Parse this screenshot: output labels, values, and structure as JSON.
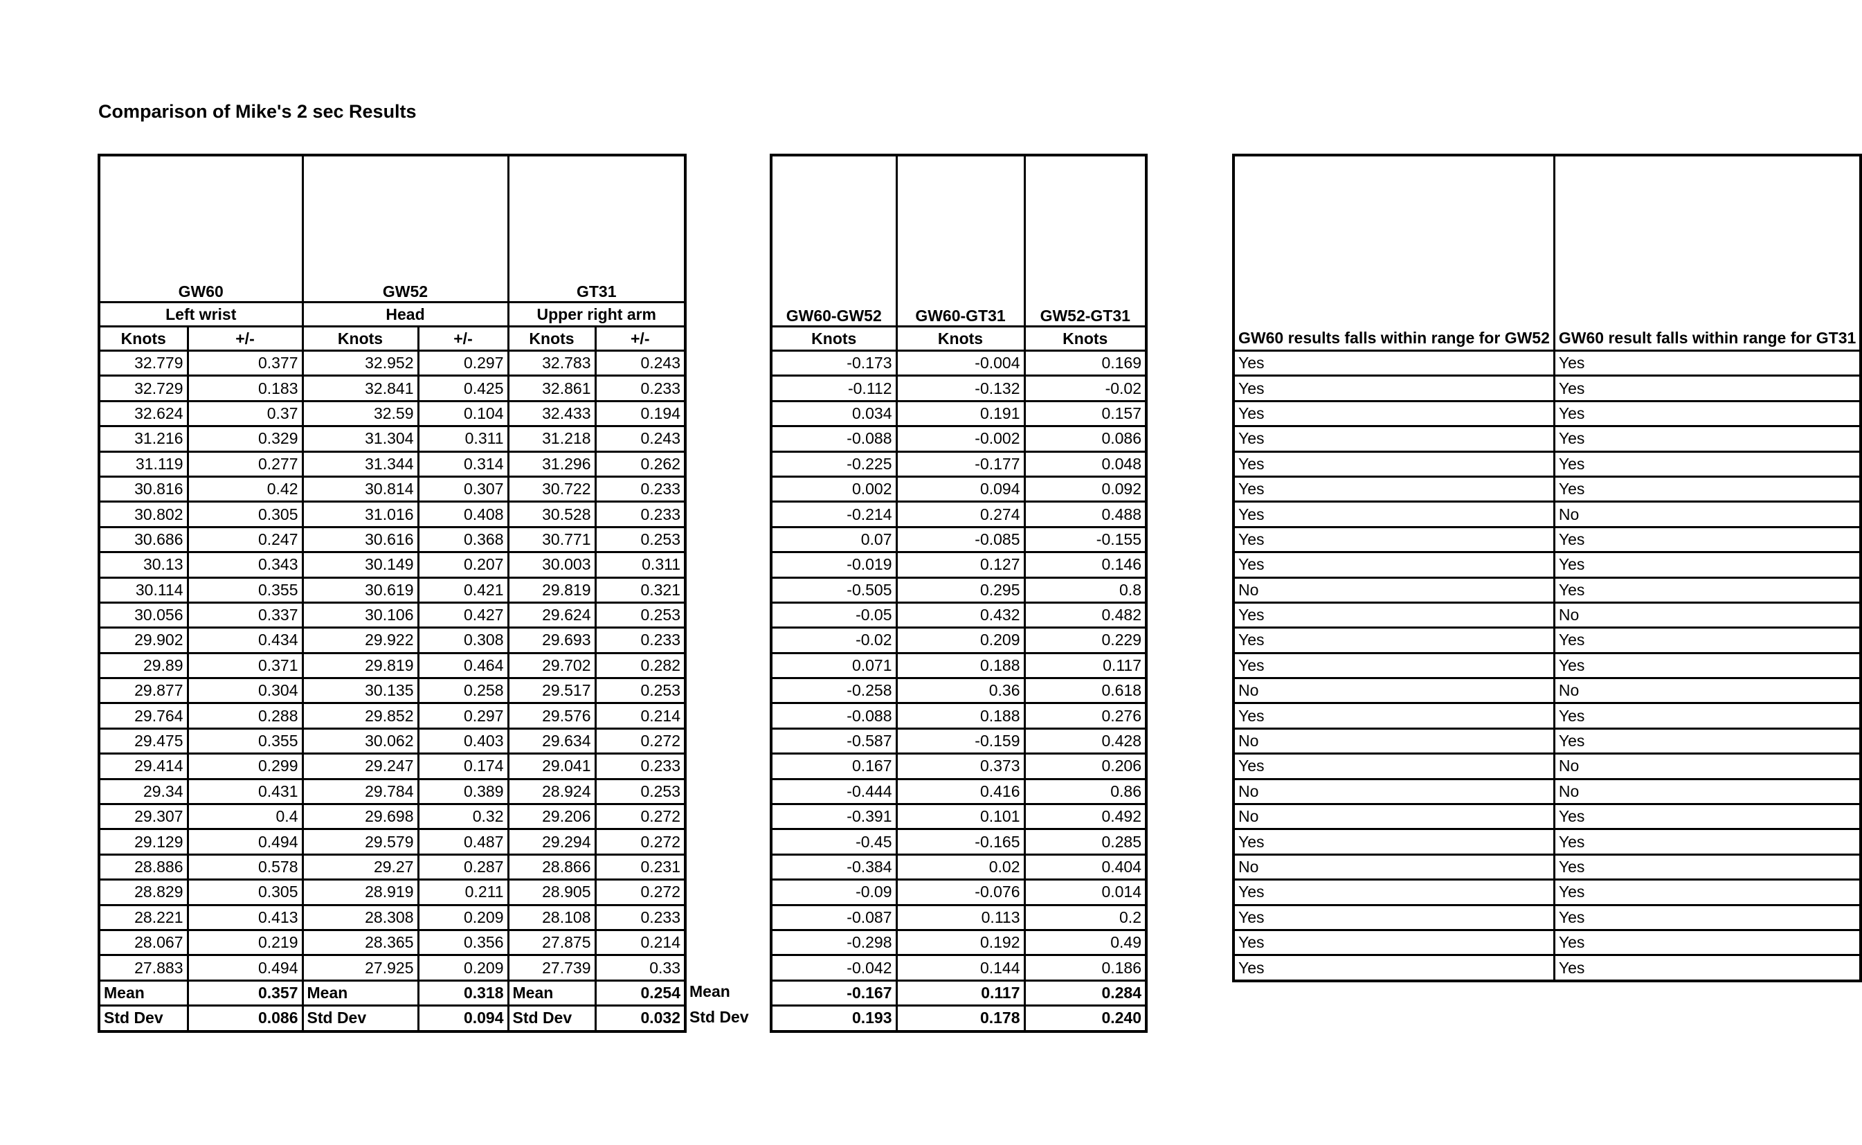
{
  "title": "Comparison of Mike's 2 sec Results",
  "outer_labels": {
    "mean": "Mean",
    "std": "Std Dev"
  },
  "measurements_table": {
    "groups": [
      {
        "device": "GW60",
        "location": "Left wrist"
      },
      {
        "device": "GW52",
        "location": "Head"
      },
      {
        "device": "GT31",
        "location": "Upper right arm"
      }
    ],
    "unit_headers": [
      "Knots",
      "+/-",
      "Knots",
      "+/-",
      "Knots",
      "+/-"
    ],
    "rows": [
      [
        "32.779",
        "0.377",
        "32.952",
        "0.297",
        "32.783",
        "0.243"
      ],
      [
        "32.729",
        "0.183",
        "32.841",
        "0.425",
        "32.861",
        "0.233"
      ],
      [
        "32.624",
        "0.37",
        "32.59",
        "0.104",
        "32.433",
        "0.194"
      ],
      [
        "31.216",
        "0.329",
        "31.304",
        "0.311",
        "31.218",
        "0.243"
      ],
      [
        "31.119",
        "0.277",
        "31.344",
        "0.314",
        "31.296",
        "0.262"
      ],
      [
        "30.816",
        "0.42",
        "30.814",
        "0.307",
        "30.722",
        "0.233"
      ],
      [
        "30.802",
        "0.305",
        "31.016",
        "0.408",
        "30.528",
        "0.233"
      ],
      [
        "30.686",
        "0.247",
        "30.616",
        "0.368",
        "30.771",
        "0.253"
      ],
      [
        "30.13",
        "0.343",
        "30.149",
        "0.207",
        "30.003",
        "0.311"
      ],
      [
        "30.114",
        "0.355",
        "30.619",
        "0.421",
        "29.819",
        "0.321"
      ],
      [
        "30.056",
        "0.337",
        "30.106",
        "0.427",
        "29.624",
        "0.253"
      ],
      [
        "29.902",
        "0.434",
        "29.922",
        "0.308",
        "29.693",
        "0.233"
      ],
      [
        "29.89",
        "0.371",
        "29.819",
        "0.464",
        "29.702",
        "0.282"
      ],
      [
        "29.877",
        "0.304",
        "30.135",
        "0.258",
        "29.517",
        "0.253"
      ],
      [
        "29.764",
        "0.288",
        "29.852",
        "0.297",
        "29.576",
        "0.214"
      ],
      [
        "29.475",
        "0.355",
        "30.062",
        "0.403",
        "29.634",
        "0.272"
      ],
      [
        "29.414",
        "0.299",
        "29.247",
        "0.174",
        "29.041",
        "0.233"
      ],
      [
        "29.34",
        "0.431",
        "29.784",
        "0.389",
        "28.924",
        "0.253"
      ],
      [
        "29.307",
        "0.4",
        "29.698",
        "0.32",
        "29.206",
        "0.272"
      ],
      [
        "29.129",
        "0.494",
        "29.579",
        "0.487",
        "29.294",
        "0.272"
      ],
      [
        "28.886",
        "0.578",
        "29.27",
        "0.287",
        "28.866",
        "0.231"
      ],
      [
        "28.829",
        "0.305",
        "28.919",
        "0.211",
        "28.905",
        "0.272"
      ],
      [
        "28.221",
        "0.413",
        "28.308",
        "0.209",
        "28.108",
        "0.233"
      ],
      [
        "28.067",
        "0.219",
        "28.365",
        "0.356",
        "27.875",
        "0.214"
      ],
      [
        "27.883",
        "0.494",
        "27.925",
        "0.209",
        "27.739",
        "0.33"
      ]
    ],
    "mean_label": "Mean",
    "std_label": "Std Dev",
    "mean_values": [
      "0.357",
      "0.318",
      "0.254"
    ],
    "std_values": [
      "0.086",
      "0.094",
      "0.032"
    ]
  },
  "differences_table": {
    "headers": [
      "GW60-GW52",
      "GW60-GT31",
      "GW52-GT31"
    ],
    "unit": "Knots",
    "rows": [
      [
        "-0.173",
        "-0.004",
        "0.169"
      ],
      [
        "-0.112",
        "-0.132",
        "-0.02"
      ],
      [
        "0.034",
        "0.191",
        "0.157"
      ],
      [
        "-0.088",
        "-0.002",
        "0.086"
      ],
      [
        "-0.225",
        "-0.177",
        "0.048"
      ],
      [
        "0.002",
        "0.094",
        "0.092"
      ],
      [
        "-0.214",
        "0.274",
        "0.488"
      ],
      [
        "0.07",
        "-0.085",
        "-0.155"
      ],
      [
        "-0.019",
        "0.127",
        "0.146"
      ],
      [
        "-0.505",
        "0.295",
        "0.8"
      ],
      [
        "-0.05",
        "0.432",
        "0.482"
      ],
      [
        "-0.02",
        "0.209",
        "0.229"
      ],
      [
        "0.071",
        "0.188",
        "0.117"
      ],
      [
        "-0.258",
        "0.36",
        "0.618"
      ],
      [
        "-0.088",
        "0.188",
        "0.276"
      ],
      [
        "-0.587",
        "-0.159",
        "0.428"
      ],
      [
        "0.167",
        "0.373",
        "0.206"
      ],
      [
        "-0.444",
        "0.416",
        "0.86"
      ],
      [
        "-0.391",
        "0.101",
        "0.492"
      ],
      [
        "-0.45",
        "-0.165",
        "0.285"
      ],
      [
        "-0.384",
        "0.02",
        "0.404"
      ],
      [
        "-0.09",
        "-0.076",
        "0.014"
      ],
      [
        "-0.087",
        "0.113",
        "0.2"
      ],
      [
        "-0.298",
        "0.192",
        "0.49"
      ],
      [
        "-0.042",
        "0.144",
        "0.186"
      ]
    ],
    "mean_values": [
      "-0.167",
      "0.117",
      "0.284"
    ],
    "std_values": [
      "0.193",
      "0.178",
      "0.240"
    ]
  },
  "range_table": {
    "headers": [
      "GW60 results falls within range for GW52",
      "GW60 result falls within range for GT31"
    ],
    "rows": [
      [
        "Yes",
        "Yes"
      ],
      [
        "Yes",
        "Yes"
      ],
      [
        "Yes",
        "Yes"
      ],
      [
        "Yes",
        "Yes"
      ],
      [
        "Yes",
        "Yes"
      ],
      [
        "Yes",
        "Yes"
      ],
      [
        "Yes",
        "No"
      ],
      [
        "Yes",
        "Yes"
      ],
      [
        "Yes",
        "Yes"
      ],
      [
        "No",
        "Yes"
      ],
      [
        "Yes",
        "No"
      ],
      [
        "Yes",
        "Yes"
      ],
      [
        "Yes",
        "Yes"
      ],
      [
        "No",
        "No"
      ],
      [
        "Yes",
        "Yes"
      ],
      [
        "No",
        "Yes"
      ],
      [
        "Yes",
        "No"
      ],
      [
        "No",
        "No"
      ],
      [
        "No",
        "Yes"
      ],
      [
        "Yes",
        "Yes"
      ],
      [
        "No",
        "Yes"
      ],
      [
        "Yes",
        "Yes"
      ],
      [
        "Yes",
        "Yes"
      ],
      [
        "Yes",
        "Yes"
      ],
      [
        "Yes",
        "Yes"
      ]
    ]
  }
}
